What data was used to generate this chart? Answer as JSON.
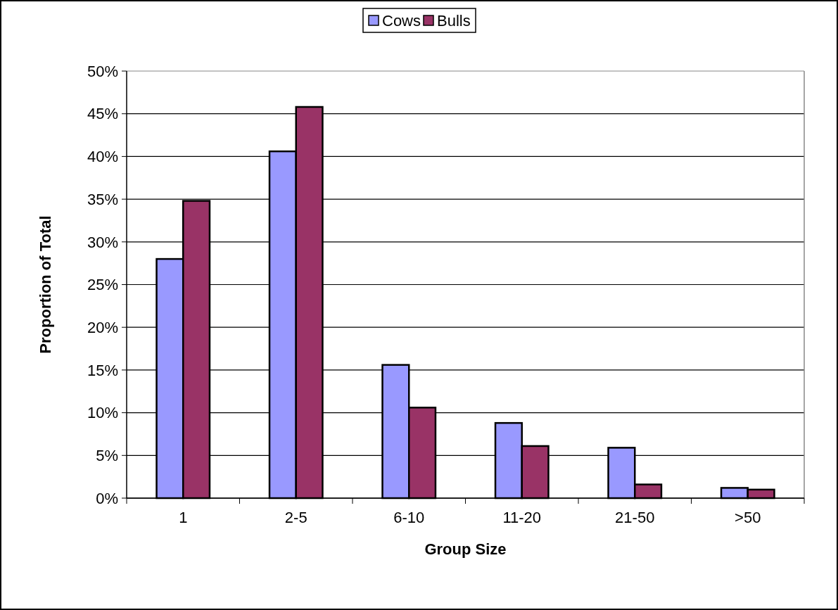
{
  "chart_data": {
    "type": "bar",
    "xlabel": "Group Size",
    "ylabel": "Proportion of Total",
    "categories": [
      "1",
      "2-5",
      "6-10",
      "11-20",
      "21-50",
      ">50"
    ],
    "series": [
      {
        "name": "Cows",
        "color": "#9999ff",
        "values": [
          28.0,
          40.6,
          15.6,
          8.8,
          5.9,
          1.2
        ]
      },
      {
        "name": "Bulls",
        "color": "#993366",
        "values": [
          34.8,
          45.8,
          10.6,
          6.1,
          1.6,
          1.0
        ]
      }
    ],
    "ylim": [
      0,
      50
    ],
    "yticks": [
      {
        "value": 0,
        "label": "0%"
      },
      {
        "value": 5,
        "label": "5%"
      },
      {
        "value": 10,
        "label": "10%"
      },
      {
        "value": 15,
        "label": "15%"
      },
      {
        "value": 20,
        "label": "20%"
      },
      {
        "value": 25,
        "label": "25%"
      },
      {
        "value": 30,
        "label": "30%"
      },
      {
        "value": 35,
        "label": "35%"
      },
      {
        "value": 40,
        "label": "40%"
      },
      {
        "value": 45,
        "label": "45%"
      },
      {
        "value": 50,
        "label": "50%"
      }
    ],
    "grid": "y",
    "legend": "top"
  }
}
